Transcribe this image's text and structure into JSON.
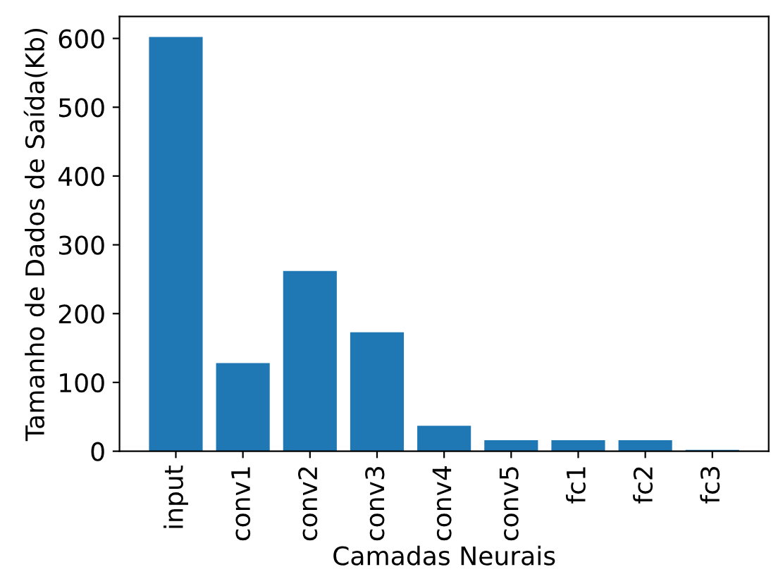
{
  "chart_data": {
    "type": "bar",
    "xlabel": "Camadas Neurais",
    "ylabel": "Tamanho de Dados de Saída(Kb)",
    "categories": [
      "input",
      "conv1",
      "conv2",
      "conv3",
      "conv4",
      "conv5",
      "fc1",
      "fc2",
      "fc3"
    ],
    "values": [
      602,
      128,
      262,
      173,
      37,
      16,
      16,
      16,
      2
    ],
    "color": "#1f77b4",
    "ylim": [
      0,
      632
    ],
    "yticks": [
      0,
      100,
      200,
      300,
      400,
      500,
      600
    ],
    "grid": false
  }
}
